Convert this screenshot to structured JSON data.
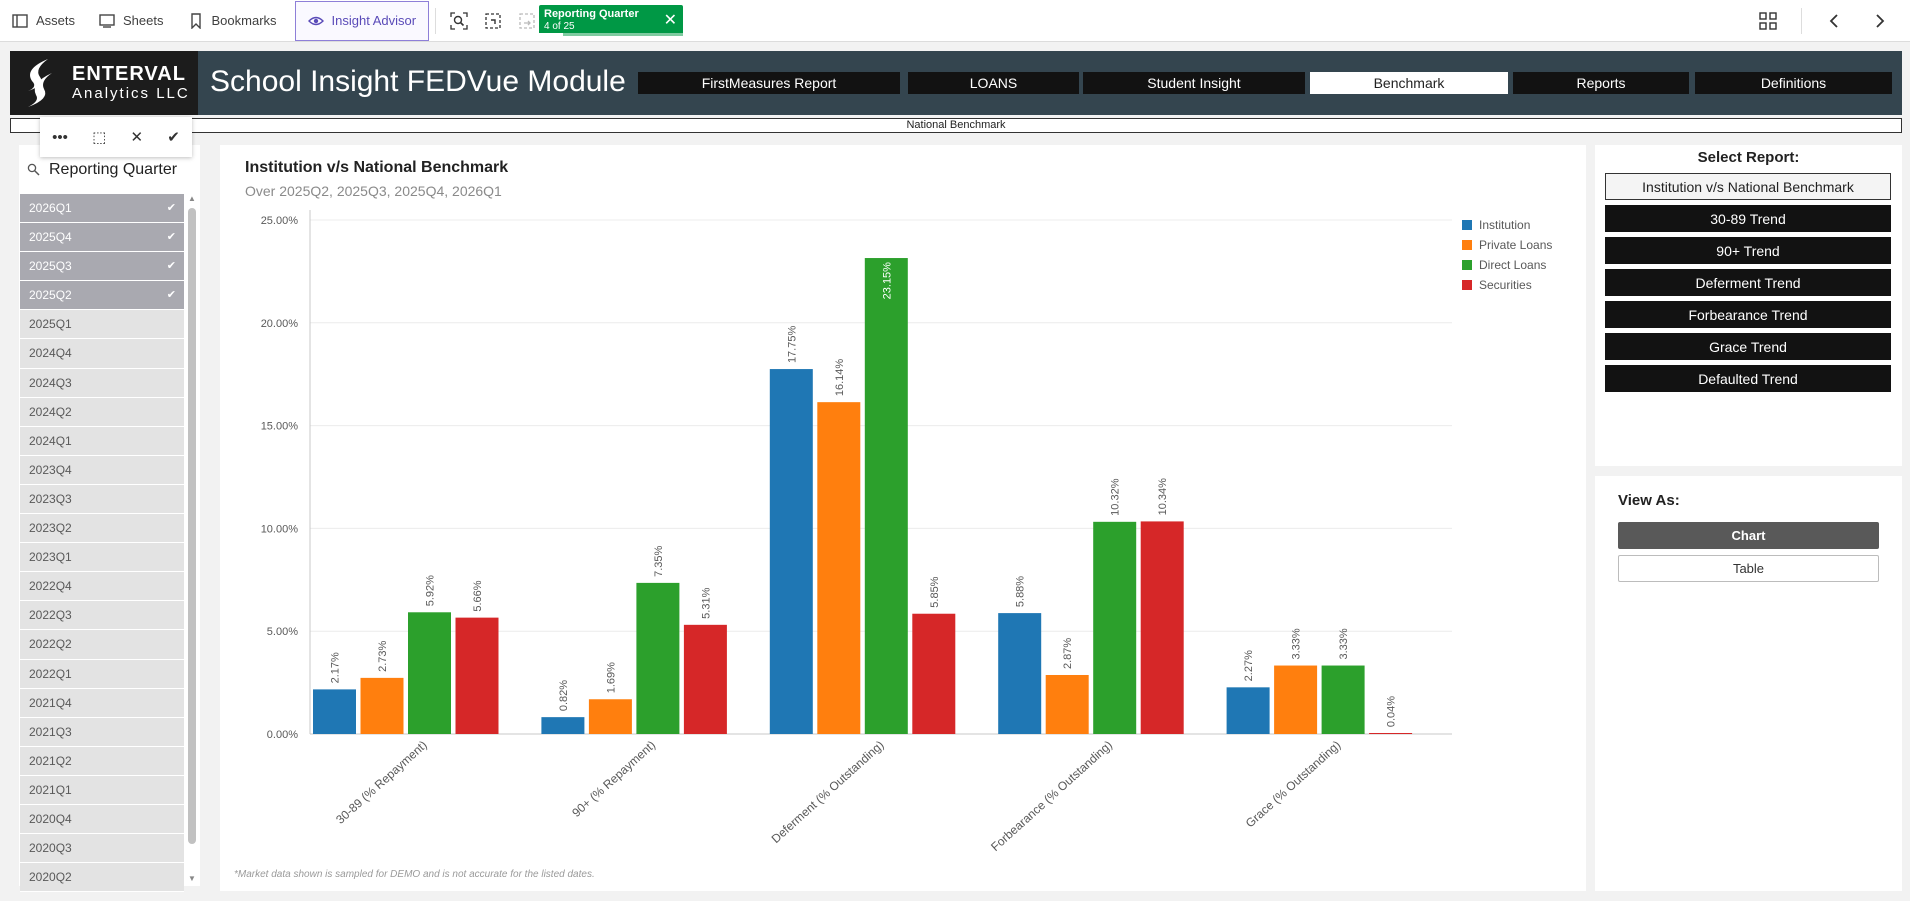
{
  "toolbar": {
    "assets": "Assets",
    "sheets": "Sheets",
    "bookmarks": "Bookmarks",
    "insight_advisor": "Insight Advisor",
    "selection_title": "Reporting Quarter",
    "selection_count": "4 of 25"
  },
  "header": {
    "logo_line1": "ENTERVAL",
    "logo_line2": "Analytics LLC",
    "title": "School Insight FEDVue Module",
    "tabs": [
      {
        "label": "FirstMeasures Report"
      },
      {
        "label": "LOANS"
      },
      {
        "label": "Student Insight"
      },
      {
        "label": "Benchmark"
      },
      {
        "label": "Reports"
      },
      {
        "label": "Definitions"
      }
    ],
    "active_tab": "Benchmark",
    "subbar": "National Benchmark"
  },
  "filter": {
    "label": "Reporting Quarter",
    "quarters": [
      {
        "label": "2026Q1",
        "selected": true
      },
      {
        "label": "2025Q4",
        "selected": true
      },
      {
        "label": "2025Q3",
        "selected": true
      },
      {
        "label": "2025Q2",
        "selected": true
      },
      {
        "label": "2025Q1",
        "selected": false
      },
      {
        "label": "2024Q4",
        "selected": false
      },
      {
        "label": "2024Q3",
        "selected": false
      },
      {
        "label": "2024Q2",
        "selected": false
      },
      {
        "label": "2024Q1",
        "selected": false
      },
      {
        "label": "2023Q4",
        "selected": false
      },
      {
        "label": "2023Q3",
        "selected": false
      },
      {
        "label": "2023Q2",
        "selected": false
      },
      {
        "label": "2023Q1",
        "selected": false
      },
      {
        "label": "2022Q4",
        "selected": false
      },
      {
        "label": "2022Q3",
        "selected": false
      },
      {
        "label": "2022Q2",
        "selected": false
      },
      {
        "label": "2022Q1",
        "selected": false
      },
      {
        "label": "2021Q4",
        "selected": false
      },
      {
        "label": "2021Q3",
        "selected": false
      },
      {
        "label": "2021Q2",
        "selected": false
      },
      {
        "label": "2021Q1",
        "selected": false
      },
      {
        "label": "2020Q4",
        "selected": false
      },
      {
        "label": "2020Q3",
        "selected": false
      },
      {
        "label": "2020Q2",
        "selected": false
      }
    ]
  },
  "chart_data": {
    "type": "bar",
    "title": "Institution v/s National Benchmark",
    "subtitle": "Over 2025Q2, 2025Q3, 2025Q4, 2026Q1",
    "categories": [
      "30-89 (% Repayment)",
      "90+ (% Repayment)",
      "Deferment (% Outstanding)",
      "Forbearance (% Outstanding)",
      "Grace (% Outstanding)"
    ],
    "series": [
      {
        "name": "Institution",
        "color": "#1f77b4",
        "values": [
          2.17,
          0.82,
          17.75,
          5.88,
          2.27
        ],
        "labels": [
          "2.17%",
          "0.82%",
          "17.75%",
          "5.88%",
          "2.27%"
        ]
      },
      {
        "name": "Private Loans",
        "color": "#ff7f0e",
        "values": [
          2.73,
          1.69,
          16.14,
          2.87,
          3.33
        ],
        "labels": [
          "2.73%",
          "1.69%",
          "16.14%",
          "2.87%",
          "3.33%"
        ]
      },
      {
        "name": "Direct Loans",
        "color": "#2ca02c",
        "values": [
          5.92,
          7.35,
          23.15,
          10.32,
          3.33
        ],
        "labels": [
          "5.92%",
          "7.35%",
          "23.15%",
          "10.32%",
          "3.33%"
        ]
      },
      {
        "name": "Securities",
        "color": "#d62728",
        "values": [
          5.66,
          5.31,
          5.85,
          10.34,
          0.04
        ],
        "labels": [
          "5.66%",
          "5.31%",
          "5.85%",
          "10.34%",
          "0.04%"
        ]
      }
    ],
    "ylim": [
      0,
      25
    ],
    "yticks": [
      0,
      5,
      10,
      15,
      20,
      25
    ],
    "ytick_labels": [
      "0.00%",
      "5.00%",
      "10.00%",
      "15.00%",
      "20.00%",
      "25.00%"
    ],
    "legend_position": "top-right",
    "grid": true
  },
  "footnote": "*Market data shown is sampled for DEMO and is not accurate for the listed dates.",
  "reports": {
    "heading": "Select Report:",
    "items": [
      {
        "label": "Institution v/s National Benchmark",
        "active": true
      },
      {
        "label": "30-89 Trend",
        "active": false
      },
      {
        "label": "90+ Trend",
        "active": false
      },
      {
        "label": "Deferment Trend",
        "active": false
      },
      {
        "label": "Forbearance Trend",
        "active": false
      },
      {
        "label": "Grace Trend",
        "active": false
      },
      {
        "label": "Defaulted Trend",
        "active": false
      }
    ]
  },
  "view": {
    "heading": "View As:",
    "chart_label": "Chart",
    "table_label": "Table"
  }
}
